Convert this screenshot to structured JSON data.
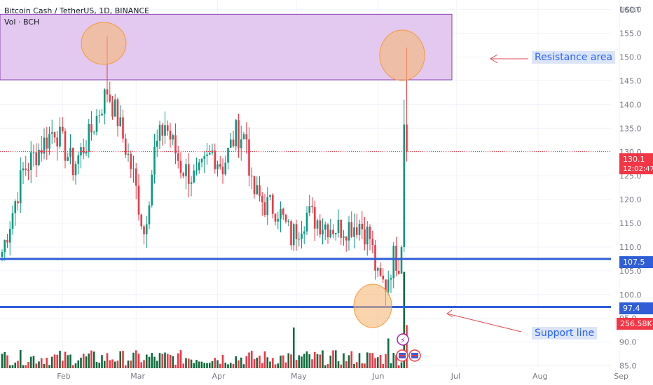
{
  "header": {
    "title": "Bitcoin Cash / TetherUS, 1D, BINANCE",
    "volume": "Vol · BCH"
  },
  "colors": {
    "up": "#089981",
    "down": "#f23645",
    "vol_up": "#0f6b3c",
    "vol_down": "#f23645",
    "support": "#2f5ed6",
    "resistance_fill": "#e3c8ef",
    "resistance_border": "#8a3fb4",
    "circle_fill": "#f7b777",
    "circle_border": "#f49a3c",
    "last_price": "#f23645"
  },
  "chart_data": {
    "type": "candlestick",
    "ylabel": "USDT",
    "y_ticks": [
      "160.0",
      "155.0",
      "150.0",
      "145.0",
      "140.0",
      "135.0",
      "130.0",
      "125.0",
      "120.0",
      "115.0",
      "110.0",
      "105.0",
      "100.0",
      "95.0",
      "90.0",
      "85.0"
    ],
    "ylim": [
      84.5,
      162
    ],
    "x_labels": [
      {
        "label": "Feb",
        "month_index": 1
      },
      {
        "label": "Mar",
        "month_index": 2
      },
      {
        "label": "Apr",
        "month_index": 3
      },
      {
        "label": "May",
        "month_index": 4
      },
      {
        "label": "Jun",
        "month_index": 5
      },
      {
        "label": "Jul",
        "month_index": 6
      },
      {
        "label": "Aug",
        "month_index": 7
      },
      {
        "label": "Sep",
        "month_index": 8
      }
    ],
    "keypoints": [
      {
        "day": 0,
        "price": 109
      },
      {
        "day": 8,
        "price": 126
      },
      {
        "day": 20,
        "price": 135
      },
      {
        "day": 27,
        "price": 127
      },
      {
        "day": 33,
        "price": 133
      },
      {
        "day": 40,
        "price": 143
      },
      {
        "day": 44,
        "price": 137
      },
      {
        "day": 50,
        "price": 125
      },
      {
        "day": 54,
        "price": 113
      },
      {
        "day": 58,
        "price": 130
      },
      {
        "day": 62,
        "price": 136
      },
      {
        "day": 68,
        "price": 127
      },
      {
        "day": 74,
        "price": 124
      },
      {
        "day": 80,
        "price": 130
      },
      {
        "day": 84,
        "price": 127
      },
      {
        "day": 89,
        "price": 134
      },
      {
        "day": 93,
        "price": 133
      },
      {
        "day": 95,
        "price": 122
      },
      {
        "day": 100,
        "price": 119
      },
      {
        "day": 105,
        "price": 118
      },
      {
        "day": 110,
        "price": 112
      },
      {
        "day": 116,
        "price": 117
      },
      {
        "day": 122,
        "price": 115
      },
      {
        "day": 128,
        "price": 114
      },
      {
        "day": 136,
        "price": 115
      },
      {
        "day": 140,
        "price": 112
      },
      {
        "day": 143,
        "price": 103
      },
      {
        "day": 146,
        "price": 102
      },
      {
        "day": 149,
        "price": 108
      },
      {
        "day": 151,
        "price": 107
      },
      {
        "day": 152,
        "price": 110
      }
    ],
    "final_candles": [
      {
        "o": 110,
        "h": 141,
        "l": 109,
        "c": 135.8
      },
      {
        "o": 135.8,
        "h": 152,
        "l": 128,
        "c": 130.1
      }
    ],
    "last_price": "130.1",
    "countdown": "12:02:47",
    "volume_label": "256.58K",
    "levels": [
      {
        "label": "107.5",
        "price": 107.5
      },
      {
        "label": "97.4",
        "price": 97.4
      }
    ],
    "resistance_zone": {
      "low": 145.2,
      "high": 159.0
    },
    "annotations": [
      "Resistance area",
      "Support line"
    ]
  }
}
